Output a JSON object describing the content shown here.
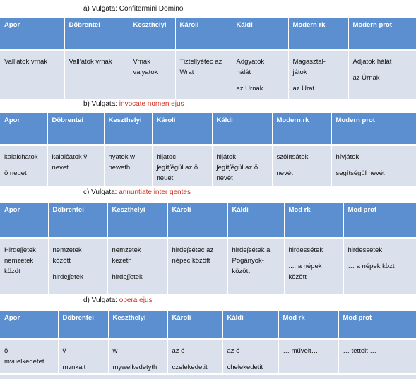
{
  "tables": [
    {
      "caption": {
        "prefix": "a)   Vulgata: ",
        "latin": "Confitermini Domino",
        "latin_red": false
      },
      "headers": [
        "Apor",
        "Döbrentei",
        "Keszthelyi",
        "Károli",
        "Káldi",
        "Modern rk",
        "Modern prot"
      ],
      "cells": [
        [
          [
            "Vall’atok vrnak"
          ]
        ],
        [
          [
            "Vall’atok vrnak"
          ]
        ],
        [
          [
            "Vrnak",
            "valyatok"
          ]
        ],
        [
          [
            "Tiztellyétec az",
            "Wrat"
          ]
        ],
        [
          [
            "Adgyatok",
            "hálát"
          ],
          [
            "az Urnak"
          ]
        ],
        [
          [
            "Magasztal-",
            "játok"
          ],
          [
            "az Urat"
          ]
        ],
        [
          [
            "Adjatok hálát"
          ],
          [
            "az Úrnak"
          ]
        ]
      ]
    },
    {
      "caption": {
        "prefix": "b)   Vulgata: ",
        "latin": "invocate nomen ejus",
        "latin_red": true
      },
      "headers": [
        "Apor",
        "Döbrentei",
        "Keszthelyi",
        "Károli",
        "Káldi",
        "Modern rk",
        "Modern prot"
      ],
      "cells": [
        [
          [
            "kaialchatok"
          ],
          [
            "ǒ neuet"
          ]
        ],
        [
          [
            "kaialĉatok ṽ",
            "nevet"
          ]
        ],
        [
          [
            "hyatok w",
            "neweth"
          ]
        ],
        [
          [
            "hijatoc",
            "ʃegítʃégül az ǒ",
            "neuét"
          ]
        ],
        [
          [
            "hijátok",
            "ʃegítʃégül az ǒ",
            "nevét"
          ]
        ],
        [
          [
            "szólítsátok"
          ],
          [
            "nevét"
          ]
        ],
        [
          [
            "hívjátok"
          ],
          [
            "segítségül nevét"
          ]
        ]
      ]
    },
    {
      "caption": {
        "prefix": "c)   Vulgata: ",
        "latin": "annuntiate inter gentes",
        "latin_red": true
      },
      "headers": [
        "Apor",
        "Döbrentei",
        "Keszthelyi",
        "Károli",
        "Káldi",
        "Mod rk",
        "Mod prot"
      ],
      "cells": [
        [
          [
            "Hirdeʃʃetek",
            "nemzetek",
            "közöt"
          ]
        ],
        [
          [
            "nemzetek",
            "között"
          ],
          [
            "hirdeʃʃetek"
          ]
        ],
        [
          [
            "nemzetek",
            "kezeth"
          ],
          [
            "hirdeʃʃetek"
          ]
        ],
        [
          [
            "hirdeʃsétec az",
            "népec között"
          ]
        ],
        [
          [
            "hirdeʃsétek a",
            "Pogányok-",
            "között"
          ]
        ],
        [
          [
            "hirdessétek"
          ],
          [
            ".... a népek",
            "között"
          ]
        ],
        [
          [
            "hirdessétek"
          ],
          [
            "… a népek közt"
          ]
        ]
      ]
    },
    {
      "caption": {
        "prefix": "d)   Vulgata: ",
        "latin": "opera ejus",
        "latin_red": true
      },
      "headers": [
        "Apor",
        "Döbrentei",
        "Keszthelyi",
        "Károli",
        "Káldi",
        "Mod rk",
        "Mod prot"
      ],
      "cells": [
        [
          [
            "ǒ",
            "mvuelkedetet"
          ]
        ],
        [
          [
            "ṽ"
          ],
          [
            "mvnkait"
          ]
        ],
        [
          [
            "w"
          ],
          [
            "mywelkedetyth"
          ]
        ],
        [
          [
            "az ǒ"
          ],
          [
            "czelekedetit"
          ]
        ],
        [
          [
            "az ǒ"
          ],
          [
            "chelekedetit"
          ]
        ],
        [
          [
            "… műveit…"
          ]
        ],
        [
          [
            "… tetteit …"
          ]
        ]
      ]
    }
  ]
}
